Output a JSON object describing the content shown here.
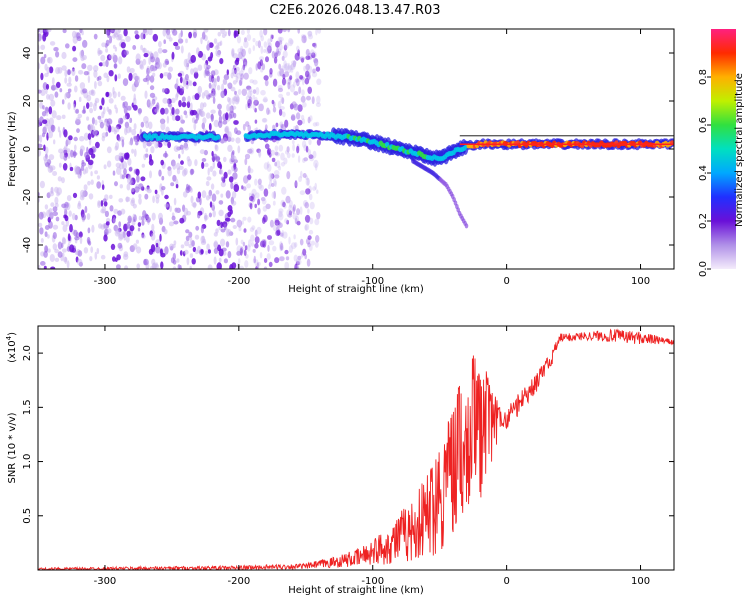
{
  "title": "C2E6.2026.048.13.47.R03",
  "colors": {
    "snr_line": "#ee2222",
    "frame": "#000000"
  },
  "chart_data": [
    {
      "type": "heatmap",
      "name": "spectrogram",
      "xlabel": "Height of straight line (km)",
      "ylabel": "Frequency (Hz)",
      "xlim": [
        -350,
        125
      ],
      "ylim": [
        -50,
        50
      ],
      "xticks": [
        -300,
        -200,
        -100,
        0,
        100
      ],
      "xtick_labels": [
        "-300",
        "-200",
        "-100",
        "0",
        "100"
      ],
      "yticks": [
        -40,
        -20,
        0,
        20,
        40
      ],
      "ytick_labels": [
        "-40",
        "-20",
        "0",
        "20",
        "40"
      ],
      "colorbar": {
        "label": "Normalized spectral amplitude",
        "range": [
          0,
          1
        ],
        "ticks": [
          0.0,
          0.2,
          0.4,
          0.6,
          0.8
        ],
        "tick_labels": [
          "0.0",
          "0.2",
          "0.4",
          "0.6",
          "0.8"
        ]
      },
      "band_trace": {
        "x": [
          -270,
          -240,
          -220,
          -200,
          -180,
          -160,
          -140,
          -120,
          -100,
          -80,
          -60,
          -50,
          -45,
          -40,
          -30,
          -20,
          0,
          40,
          80,
          125
        ],
        "y": [
          5,
          5,
          5,
          5,
          6,
          6,
          6,
          5,
          3,
          0,
          -3,
          -4,
          -3,
          -1,
          1,
          2,
          2,
          2,
          2,
          2
        ]
      },
      "faint_branch": {
        "x": [
          -70,
          -55,
          -45,
          -40,
          -35,
          -30
        ],
        "y": [
          -5,
          -10,
          -15,
          -20,
          -27,
          -32
        ]
      }
    },
    {
      "type": "line",
      "name": "snr",
      "xlabel": "Height of straight line (km)",
      "ylabel": "SNR (10 * v/v)",
      "exponent_label": "(x10",
      "exponent_power": "4",
      "exponent_close": ")",
      "xlim": [
        -350,
        125
      ],
      "ylim": [
        0,
        2.25
      ],
      "xticks": [
        -300,
        -200,
        -100,
        0,
        100
      ],
      "xtick_labels": [
        "-300",
        "-200",
        "-100",
        "0",
        "100"
      ],
      "yticks": [
        0.5,
        1.0,
        1.5,
        2.0
      ],
      "ytick_labels": [
        "0.5",
        "1.0",
        "1.5",
        "2.0"
      ],
      "envelope": {
        "x": [
          -350,
          -200,
          -150,
          -130,
          -110,
          -100,
          -90,
          -80,
          -70,
          -60,
          -50,
          -40,
          -35,
          -30,
          -25,
          -20,
          -15,
          -10,
          -5,
          0,
          10,
          20,
          30,
          40,
          60,
          80,
          100,
          125
        ],
        "low": [
          0.0,
          0.0,
          0.01,
          0.02,
          0.03,
          0.05,
          0.05,
          0.06,
          0.08,
          0.1,
          0.15,
          0.3,
          0.5,
          0.4,
          0.6,
          0.6,
          0.9,
          1.0,
          1.2,
          1.25,
          1.45,
          1.6,
          1.78,
          2.1,
          2.12,
          2.1,
          2.08,
          2.08
        ],
        "high": [
          0.02,
          0.04,
          0.06,
          0.12,
          0.2,
          0.3,
          0.38,
          0.55,
          0.65,
          0.9,
          1.3,
          1.5,
          1.8,
          1.6,
          2.05,
          1.8,
          1.85,
          1.7,
          1.5,
          1.5,
          1.65,
          1.8,
          1.95,
          2.18,
          2.2,
          2.22,
          2.2,
          2.12
        ]
      }
    }
  ]
}
